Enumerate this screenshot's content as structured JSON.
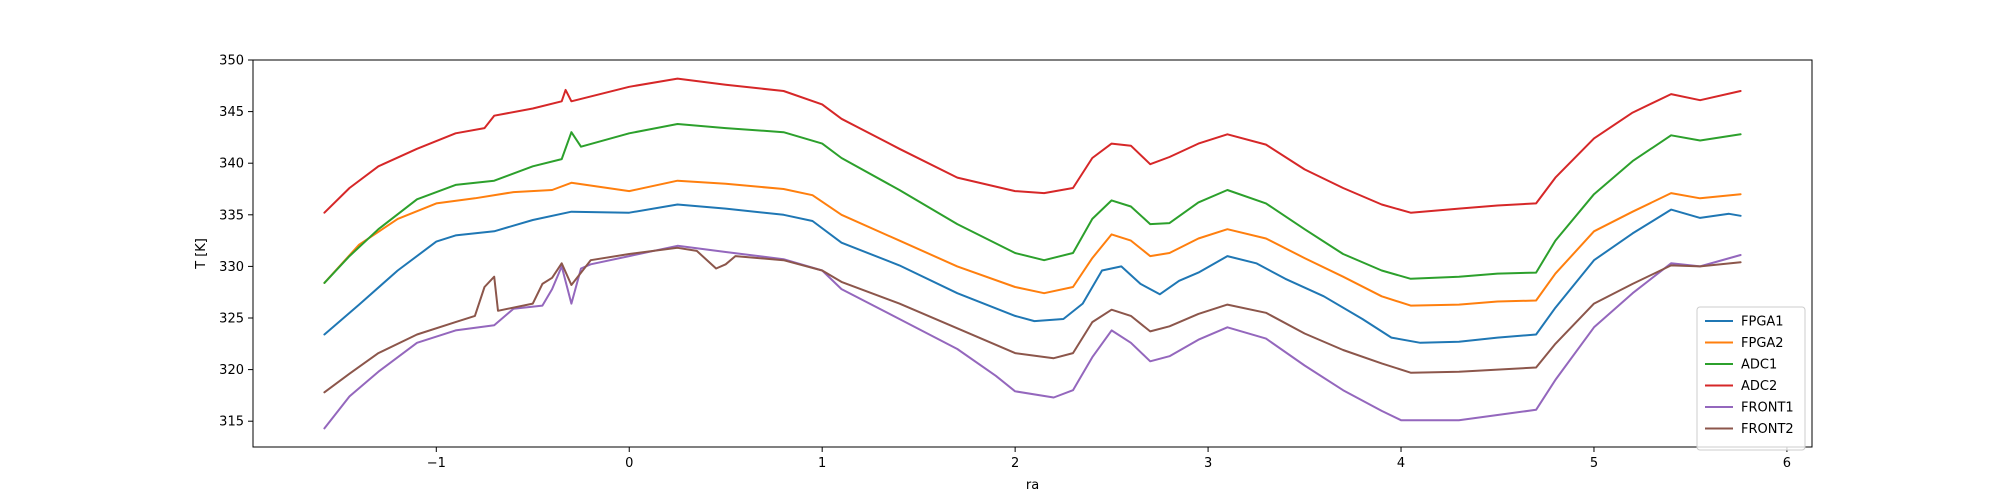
{
  "chart_data": {
    "type": "line",
    "title": "",
    "xlabel": "ra",
    "ylabel": "T [K]",
    "xlim": [
      -1.95,
      6.13
    ],
    "ylim": [
      312.5,
      350
    ],
    "xticks": [
      -1,
      0,
      1,
      2,
      3,
      4,
      5,
      6
    ],
    "yticks": [
      315,
      320,
      325,
      330,
      335,
      340,
      345,
      350
    ],
    "grid": false,
    "legend": "lower-right",
    "series": [
      {
        "name": "FPGA1",
        "color": "#1f77b4",
        "points": [
          [
            -1.58,
            323.4
          ],
          [
            -1.4,
            326.3
          ],
          [
            -1.2,
            329.6
          ],
          [
            -1.0,
            332.4
          ],
          [
            -0.9,
            333.0
          ],
          [
            -0.7,
            333.4
          ],
          [
            -0.5,
            334.5
          ],
          [
            -0.3,
            335.3
          ],
          [
            0.0,
            335.2
          ],
          [
            0.25,
            336.0
          ],
          [
            0.5,
            335.6
          ],
          [
            0.8,
            335.0
          ],
          [
            0.95,
            334.4
          ],
          [
            1.1,
            332.3
          ],
          [
            1.4,
            330.1
          ],
          [
            1.7,
            327.4
          ],
          [
            2.0,
            325.2
          ],
          [
            2.1,
            324.7
          ],
          [
            2.25,
            324.9
          ],
          [
            2.35,
            326.4
          ],
          [
            2.45,
            329.6
          ],
          [
            2.55,
            330.0
          ],
          [
            2.65,
            328.3
          ],
          [
            2.75,
            327.3
          ],
          [
            2.85,
            328.6
          ],
          [
            2.95,
            329.4
          ],
          [
            3.1,
            331.0
          ],
          [
            3.25,
            330.3
          ],
          [
            3.4,
            328.8
          ],
          [
            3.6,
            327.1
          ],
          [
            3.8,
            324.9
          ],
          [
            3.95,
            323.1
          ],
          [
            4.1,
            322.6
          ],
          [
            4.3,
            322.7
          ],
          [
            4.5,
            323.1
          ],
          [
            4.7,
            323.4
          ],
          [
            4.8,
            326.0
          ],
          [
            5.0,
            330.6
          ],
          [
            5.2,
            333.2
          ],
          [
            5.4,
            335.5
          ],
          [
            5.55,
            334.7
          ],
          [
            5.7,
            335.1
          ],
          [
            5.76,
            334.9
          ]
        ]
      },
      {
        "name": "FPGA2",
        "color": "#ff7f0e",
        "points": [
          [
            -1.58,
            328.4
          ],
          [
            -1.4,
            332.1
          ],
          [
            -1.2,
            334.6
          ],
          [
            -1.0,
            336.1
          ],
          [
            -0.8,
            336.6
          ],
          [
            -0.6,
            337.2
          ],
          [
            -0.4,
            337.4
          ],
          [
            -0.3,
            338.1
          ],
          [
            0.0,
            337.3
          ],
          [
            0.25,
            338.3
          ],
          [
            0.5,
            338.0
          ],
          [
            0.8,
            337.5
          ],
          [
            0.95,
            336.9
          ],
          [
            1.1,
            335.0
          ],
          [
            1.4,
            332.5
          ],
          [
            1.7,
            330.0
          ],
          [
            2.0,
            328.0
          ],
          [
            2.15,
            327.4
          ],
          [
            2.3,
            328.0
          ],
          [
            2.4,
            330.8
          ],
          [
            2.5,
            333.1
          ],
          [
            2.6,
            332.5
          ],
          [
            2.7,
            331.0
          ],
          [
            2.8,
            331.3
          ],
          [
            2.95,
            332.7
          ],
          [
            3.1,
            333.6
          ],
          [
            3.3,
            332.7
          ],
          [
            3.5,
            330.8
          ],
          [
            3.7,
            329.0
          ],
          [
            3.9,
            327.1
          ],
          [
            4.05,
            326.2
          ],
          [
            4.3,
            326.3
          ],
          [
            4.5,
            326.6
          ],
          [
            4.7,
            326.7
          ],
          [
            4.8,
            329.3
          ],
          [
            5.0,
            333.4
          ],
          [
            5.2,
            335.3
          ],
          [
            5.4,
            337.1
          ],
          [
            5.55,
            336.6
          ],
          [
            5.76,
            337.0
          ]
        ]
      },
      {
        "name": "ADC1",
        "color": "#2ca02c",
        "points": [
          [
            -1.58,
            328.4
          ],
          [
            -1.45,
            331.0
          ],
          [
            -1.3,
            333.6
          ],
          [
            -1.1,
            336.5
          ],
          [
            -0.9,
            337.9
          ],
          [
            -0.7,
            338.3
          ],
          [
            -0.5,
            339.7
          ],
          [
            -0.35,
            340.4
          ],
          [
            -0.3,
            343.0
          ],
          [
            -0.25,
            341.6
          ],
          [
            0.0,
            342.9
          ],
          [
            0.25,
            343.8
          ],
          [
            0.5,
            343.4
          ],
          [
            0.8,
            343.0
          ],
          [
            1.0,
            341.9
          ],
          [
            1.1,
            340.5
          ],
          [
            1.4,
            337.4
          ],
          [
            1.7,
            334.1
          ],
          [
            2.0,
            331.3
          ],
          [
            2.15,
            330.6
          ],
          [
            2.3,
            331.3
          ],
          [
            2.4,
            334.6
          ],
          [
            2.5,
            336.4
          ],
          [
            2.6,
            335.8
          ],
          [
            2.7,
            334.1
          ],
          [
            2.8,
            334.2
          ],
          [
            2.95,
            336.2
          ],
          [
            3.1,
            337.4
          ],
          [
            3.3,
            336.1
          ],
          [
            3.5,
            333.6
          ],
          [
            3.7,
            331.2
          ],
          [
            3.9,
            329.6
          ],
          [
            4.05,
            328.8
          ],
          [
            4.3,
            329.0
          ],
          [
            4.5,
            329.3
          ],
          [
            4.7,
            329.4
          ],
          [
            4.8,
            332.5
          ],
          [
            5.0,
            337.0
          ],
          [
            5.2,
            340.2
          ],
          [
            5.4,
            342.7
          ],
          [
            5.55,
            342.2
          ],
          [
            5.76,
            342.8
          ]
        ]
      },
      {
        "name": "ADC2",
        "color": "#d62728",
        "points": [
          [
            -1.58,
            335.2
          ],
          [
            -1.45,
            337.6
          ],
          [
            -1.3,
            339.7
          ],
          [
            -1.1,
            341.4
          ],
          [
            -0.9,
            342.9
          ],
          [
            -0.75,
            343.4
          ],
          [
            -0.7,
            344.6
          ],
          [
            -0.5,
            345.3
          ],
          [
            -0.35,
            346.0
          ],
          [
            -0.33,
            347.1
          ],
          [
            -0.3,
            346.0
          ],
          [
            0.0,
            347.4
          ],
          [
            0.25,
            348.2
          ],
          [
            0.5,
            347.6
          ],
          [
            0.8,
            347.0
          ],
          [
            1.0,
            345.7
          ],
          [
            1.1,
            344.3
          ],
          [
            1.4,
            341.4
          ],
          [
            1.7,
            338.6
          ],
          [
            2.0,
            337.3
          ],
          [
            2.15,
            337.1
          ],
          [
            2.3,
            337.6
          ],
          [
            2.4,
            340.5
          ],
          [
            2.5,
            341.9
          ],
          [
            2.6,
            341.7
          ],
          [
            2.7,
            339.9
          ],
          [
            2.8,
            340.6
          ],
          [
            2.95,
            341.9
          ],
          [
            3.1,
            342.8
          ],
          [
            3.3,
            341.8
          ],
          [
            3.5,
            339.4
          ],
          [
            3.7,
            337.6
          ],
          [
            3.9,
            336.0
          ],
          [
            4.05,
            335.2
          ],
          [
            4.3,
            335.6
          ],
          [
            4.5,
            335.9
          ],
          [
            4.7,
            336.1
          ],
          [
            4.8,
            338.6
          ],
          [
            5.0,
            342.4
          ],
          [
            5.2,
            344.9
          ],
          [
            5.4,
            346.7
          ],
          [
            5.55,
            346.1
          ],
          [
            5.76,
            347.0
          ]
        ]
      },
      {
        "name": "FRONT1",
        "color": "#9467bd",
        "points": [
          [
            -1.58,
            314.3
          ],
          [
            -1.45,
            317.4
          ],
          [
            -1.3,
            319.8
          ],
          [
            -1.1,
            322.6
          ],
          [
            -0.9,
            323.8
          ],
          [
            -0.7,
            324.3
          ],
          [
            -0.6,
            325.9
          ],
          [
            -0.45,
            326.2
          ],
          [
            -0.4,
            327.8
          ],
          [
            -0.35,
            330.0
          ],
          [
            -0.3,
            326.4
          ],
          [
            -0.25,
            329.8
          ],
          [
            -0.2,
            330.2
          ],
          [
            0.0,
            331.0
          ],
          [
            0.25,
            332.0
          ],
          [
            0.5,
            331.4
          ],
          [
            0.8,
            330.7
          ],
          [
            1.0,
            329.6
          ],
          [
            1.1,
            327.8
          ],
          [
            1.4,
            324.9
          ],
          [
            1.7,
            322.0
          ],
          [
            1.9,
            319.4
          ],
          [
            2.0,
            317.9
          ],
          [
            2.2,
            317.3
          ],
          [
            2.3,
            318.0
          ],
          [
            2.4,
            321.2
          ],
          [
            2.5,
            323.8
          ],
          [
            2.6,
            322.6
          ],
          [
            2.7,
            320.8
          ],
          [
            2.8,
            321.3
          ],
          [
            2.95,
            322.9
          ],
          [
            3.1,
            324.1
          ],
          [
            3.3,
            323.0
          ],
          [
            3.5,
            320.4
          ],
          [
            3.7,
            318.0
          ],
          [
            3.9,
            316.0
          ],
          [
            4.0,
            315.1
          ],
          [
            4.3,
            315.1
          ],
          [
            4.5,
            315.6
          ],
          [
            4.7,
            316.1
          ],
          [
            4.8,
            319.0
          ],
          [
            5.0,
            324.1
          ],
          [
            5.2,
            327.4
          ],
          [
            5.4,
            330.3
          ],
          [
            5.55,
            330.0
          ],
          [
            5.76,
            331.1
          ]
        ]
      },
      {
        "name": "FRONT2",
        "color": "#8c564b",
        "points": [
          [
            -1.58,
            317.8
          ],
          [
            -1.45,
            319.6
          ],
          [
            -1.3,
            321.6
          ],
          [
            -1.1,
            323.4
          ],
          [
            -0.9,
            324.6
          ],
          [
            -0.8,
            325.2
          ],
          [
            -0.75,
            328.0
          ],
          [
            -0.7,
            329.0
          ],
          [
            -0.68,
            325.7
          ],
          [
            -0.5,
            326.4
          ],
          [
            -0.45,
            328.3
          ],
          [
            -0.4,
            328.9
          ],
          [
            -0.35,
            330.3
          ],
          [
            -0.3,
            328.2
          ],
          [
            -0.2,
            330.6
          ],
          [
            0.0,
            331.2
          ],
          [
            0.25,
            331.8
          ],
          [
            0.35,
            331.5
          ],
          [
            0.45,
            329.8
          ],
          [
            0.5,
            330.2
          ],
          [
            0.55,
            331.0
          ],
          [
            0.8,
            330.6
          ],
          [
            1.0,
            329.6
          ],
          [
            1.1,
            328.5
          ],
          [
            1.4,
            326.4
          ],
          [
            1.7,
            324.0
          ],
          [
            2.0,
            321.6
          ],
          [
            2.2,
            321.1
          ],
          [
            2.3,
            321.6
          ],
          [
            2.4,
            324.6
          ],
          [
            2.5,
            325.8
          ],
          [
            2.6,
            325.2
          ],
          [
            2.7,
            323.7
          ],
          [
            2.8,
            324.2
          ],
          [
            2.95,
            325.4
          ],
          [
            3.1,
            326.3
          ],
          [
            3.3,
            325.5
          ],
          [
            3.5,
            323.5
          ],
          [
            3.7,
            321.9
          ],
          [
            3.9,
            320.6
          ],
          [
            4.05,
            319.7
          ],
          [
            4.3,
            319.8
          ],
          [
            4.5,
            320.0
          ],
          [
            4.7,
            320.2
          ],
          [
            4.8,
            322.5
          ],
          [
            5.0,
            326.4
          ],
          [
            5.2,
            328.3
          ],
          [
            5.4,
            330.1
          ],
          [
            5.55,
            330.0
          ],
          [
            5.76,
            330.4
          ]
        ]
      }
    ]
  }
}
